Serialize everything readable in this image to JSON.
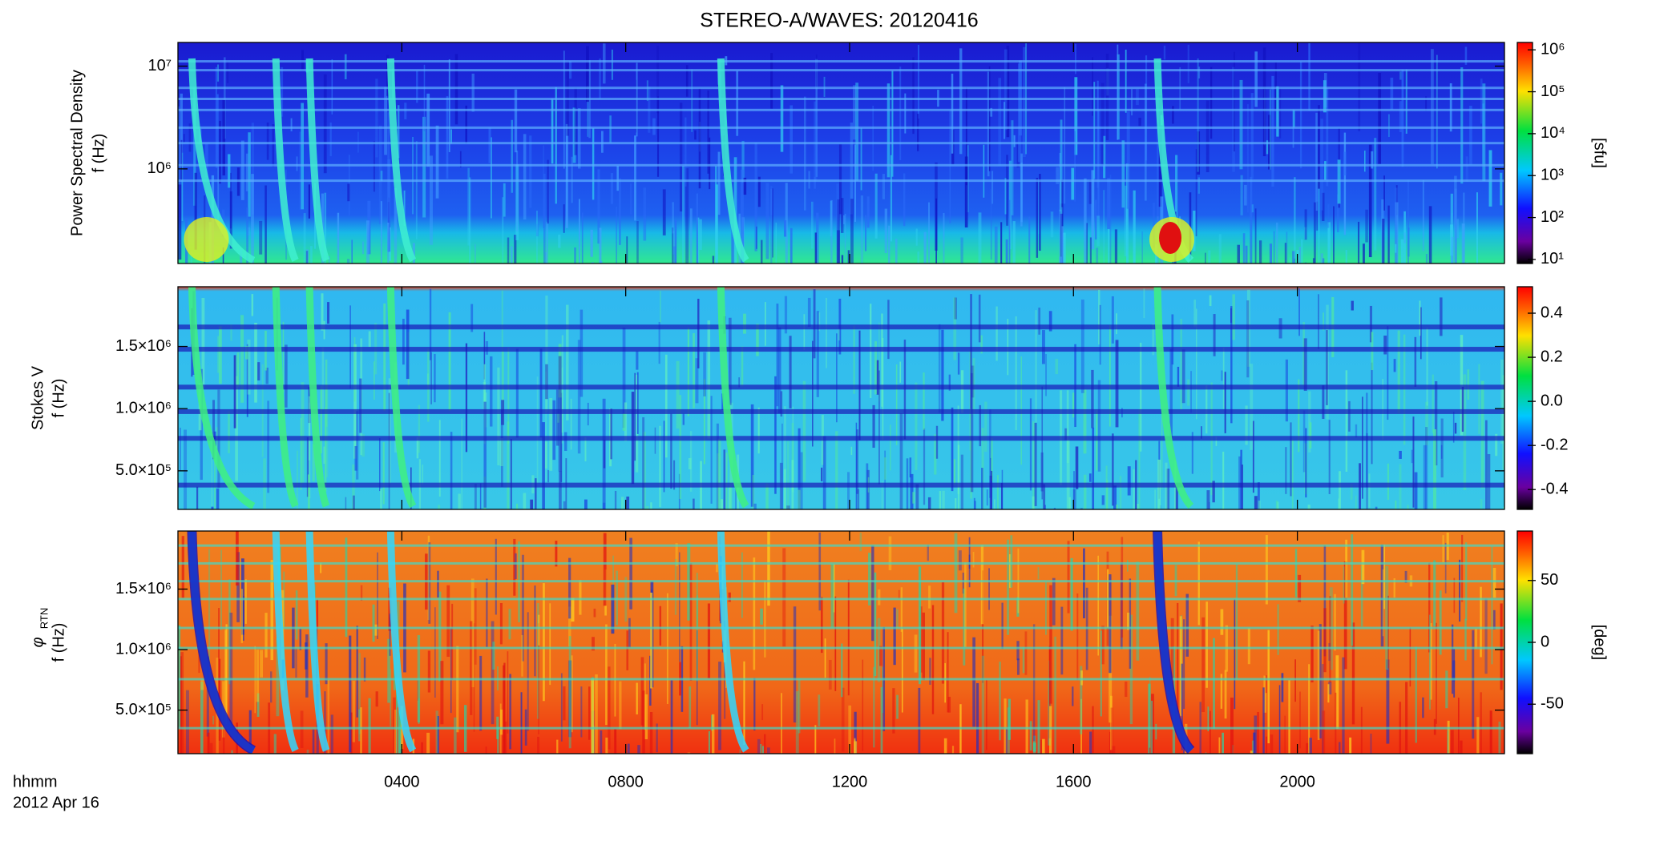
{
  "title": "STEREO-A/WAVES: 20120416",
  "xlabel": "hhmm",
  "date": "2012 Apr 16",
  "xlim": [
    0,
    23.7
  ],
  "xticks": [
    {
      "value": 4,
      "label": "0400"
    },
    {
      "value": 8,
      "label": "0800"
    },
    {
      "value": 12,
      "label": "1200"
    },
    {
      "value": 16,
      "label": "1600"
    },
    {
      "value": 20,
      "label": "2000"
    }
  ],
  "chart_data": [
    {
      "type": "spectrogram",
      "ylabel": [
        "Power Spectral Density",
        "f (Hz)"
      ],
      "ylog": true,
      "ylim": [
        120000,
        17000000
      ],
      "yticks": [
        {
          "value": 1000000,
          "label": "10⁶"
        },
        {
          "value": 10000000,
          "label": "10⁷"
        }
      ],
      "colorbar": {
        "label": "[sfu]",
        "log": true,
        "lim": [
          8,
          1500000
        ],
        "ticks": [
          {
            "value": 10,
            "label": "10¹"
          },
          {
            "value": 100,
            "label": "10²"
          },
          {
            "value": 1000,
            "label": "10³"
          },
          {
            "value": 10000,
            "label": "10⁴"
          },
          {
            "value": 100000,
            "label": "10⁵"
          },
          {
            "value": 1000000,
            "label": "10⁶"
          }
        ]
      }
    },
    {
      "type": "spectrogram",
      "ylabel": [
        "Stokes V",
        "f (Hz)"
      ],
      "ylog": false,
      "ylim": [
        190000,
        1980000
      ],
      "yticks": [
        {
          "value": 500000,
          "label": "5.0×10⁵"
        },
        {
          "value": 1000000,
          "label": "1.0×10⁶"
        },
        {
          "value": 1500000,
          "label": "1.5×10⁶"
        }
      ],
      "colorbar": {
        "log": false,
        "lim": [
          -0.49,
          0.52
        ],
        "ticks": [
          -0.4,
          -0.2,
          {
            "value": 0,
            "label": "0.0"
          },
          0.2,
          0.4
        ]
      }
    },
    {
      "type": "spectrogram",
      "ylabel": [
        "φ",
        "f (Hz)"
      ],
      "ylabel_subscript": "RTN",
      "ylog": false,
      "ylim": [
        140000,
        1980000
      ],
      "yticks": [
        {
          "value": 500000,
          "label": "5.0×10⁵"
        },
        {
          "value": 1000000,
          "label": "1.0×10⁶"
        },
        {
          "value": 1500000,
          "label": "1.5×10⁶"
        }
      ],
      "colorbar": {
        "label": "[deg]",
        "log": false,
        "lim": [
          -90,
          90
        ],
        "ticks": [
          -50,
          0,
          50
        ]
      }
    }
  ]
}
